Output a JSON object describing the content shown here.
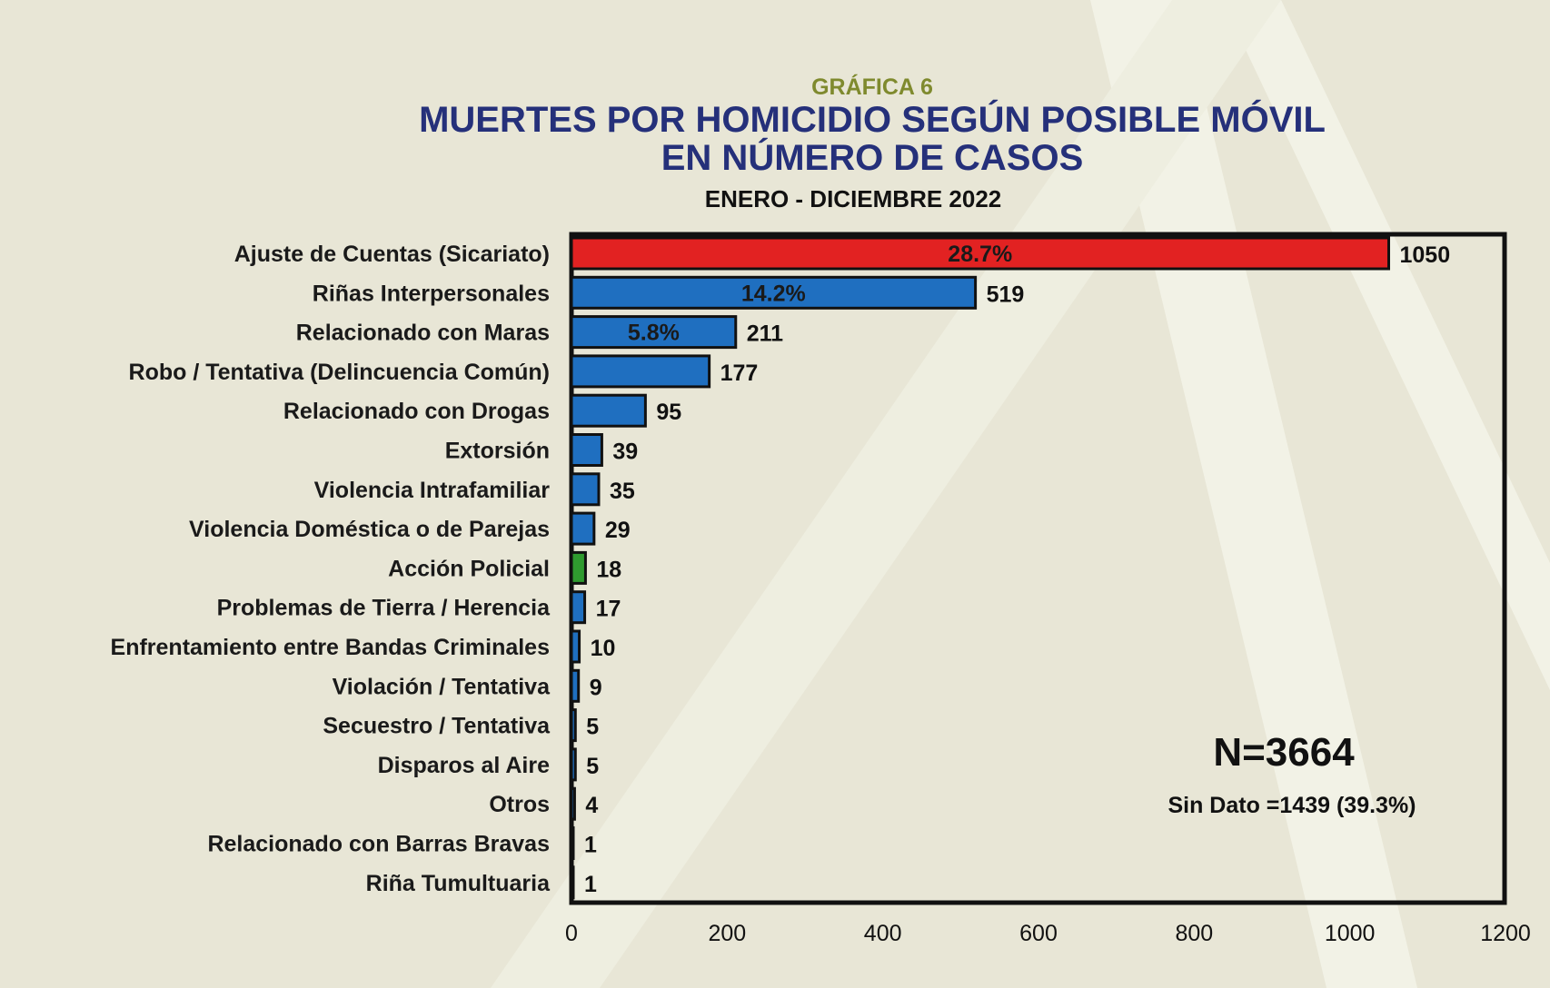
{
  "header": {
    "supertitle": "GRÁFICA 6",
    "title_line1": "MUERTES POR HOMICIDIO SEGÚN POSIBLE MÓVIL",
    "title_line2": "EN  NÚMERO DE CASOS",
    "subtitle": "ENERO - DICIEMBRE 2022"
  },
  "annotations": {
    "n_total": "N=3664",
    "sin_dato": "Sin Dato =1439 (39.3%)"
  },
  "colors": {
    "default_bar": "#1f6fc0",
    "highlight_bar": "#e22222",
    "police_bar": "#2f9a2f",
    "title": "#25307a",
    "supertitle": "#7f8a2e"
  },
  "chart_data": {
    "type": "bar",
    "orientation": "horizontal",
    "categories": [
      "Ajuste de Cuentas (Sicariato)",
      "Riñas Interpersonales",
      "Relacionado con Maras",
      "Robo / Tentativa (Delincuencia Común)",
      "Relacionado con Drogas",
      "Extorsión",
      "Violencia Intrafamiliar",
      "Violencia Doméstica o de Parejas",
      "Acción Policial",
      "Problemas de Tierra / Herencia",
      "Enfrentamiento entre Bandas Criminales",
      "Violación / Tentativa",
      "Secuestro / Tentativa",
      "Disparos al Aire",
      "Otros",
      "Relacionado con Barras Bravas",
      "Riña Tumultuaria"
    ],
    "values": [
      1050,
      519,
      211,
      177,
      95,
      39,
      35,
      29,
      18,
      17,
      10,
      9,
      5,
      5,
      4,
      1,
      1
    ],
    "value_labels": [
      "1050",
      "519",
      "211",
      "177",
      "95",
      "39",
      "35",
      "29",
      "18",
      "17",
      "10",
      "9",
      "5",
      "5",
      "4",
      "1",
      "1"
    ],
    "percent_labels": [
      "28.7%",
      "14.2%",
      "5.8%",
      "",
      "",
      "",
      "",
      "",
      "",
      "",
      "",
      "",
      "",
      "",
      "",
      "",
      ""
    ],
    "bar_colors": [
      "highlight",
      "default",
      "default",
      "default",
      "default",
      "default",
      "default",
      "default",
      "police",
      "default",
      "default",
      "default",
      "default",
      "default",
      "default",
      "default",
      "default"
    ],
    "xlim": [
      0,
      1200
    ],
    "xticks": [
      "0",
      "200",
      "400",
      "600",
      "800",
      "1000",
      "1200"
    ],
    "xlabel": "",
    "ylabel": "",
    "grid": false,
    "legend": "none"
  }
}
